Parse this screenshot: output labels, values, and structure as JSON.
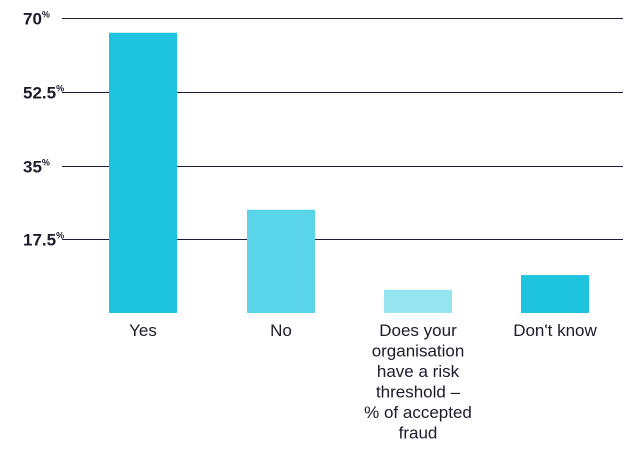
{
  "chart_data": {
    "type": "bar",
    "categories": [
      "Yes",
      "No",
      "Does your organisation have a risk threshold – % of accepted fraud",
      "Don't know"
    ],
    "category_label_lines": [
      [
        "Yes"
      ],
      [
        "No"
      ],
      [
        "Does your",
        "organisation",
        "have a risk",
        "threshold –",
        "% of accepted",
        "fraud"
      ],
      [
        "Don't know"
      ]
    ],
    "values": [
      66.5,
      24.5,
      5.5,
      9
    ],
    "bar_colors": [
      "#1ec4de",
      "#59d4e8",
      "#95e5f1",
      "#1ec4de"
    ],
    "title": "",
    "xlabel": "",
    "ylabel": "",
    "ylim": [
      0,
      70
    ],
    "yticks": [
      17.5,
      35,
      52.5,
      70
    ],
    "ytick_labels": [
      "17.5",
      "35",
      "52.5",
      "70"
    ],
    "ytick_suffix": "%",
    "grid": true,
    "legend": "none"
  }
}
